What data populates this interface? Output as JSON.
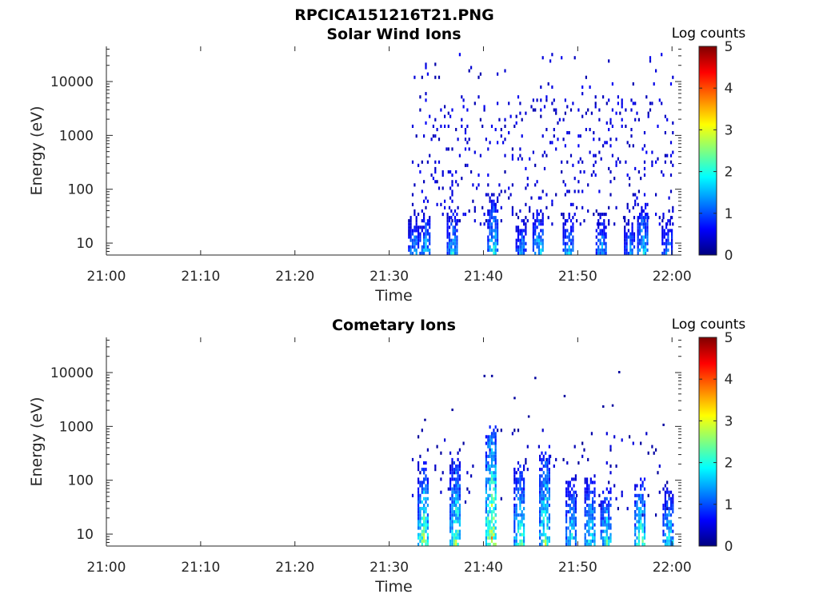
{
  "figure": {
    "title": "RPCICA151216T21.PNG"
  },
  "chart_data": [
    {
      "type": "heatmap",
      "title": "Solar Wind Ions",
      "xlabel": "Time",
      "ylabel": "Energy (eV)",
      "x_ticks": [
        "21:00",
        "21:10",
        "21:20",
        "21:30",
        "21:40",
        "21:50",
        "22:00"
      ],
      "x_range_minutes": [
        0,
        61
      ],
      "y_scale": "log",
      "y_ticks": [
        "10",
        "100",
        "1000",
        "10000"
      ],
      "y_tick_values": [
        10,
        100,
        1000,
        10000
      ],
      "y_range": [
        6,
        45000
      ],
      "colorbar": {
        "title": "Log counts",
        "ticks": [
          "0",
          "1",
          "2",
          "3",
          "4",
          "5"
        ],
        "range": [
          0,
          5
        ],
        "colormap": "jet"
      },
      "data_start_minute": 32.2,
      "bursts": [
        {
          "t": 32.6,
          "e_high": 25,
          "level": 1.8
        },
        {
          "t": 33.8,
          "e_high": 30,
          "level": 1.9
        },
        {
          "t": 36.7,
          "e_high": 35,
          "level": 2.0
        },
        {
          "t": 41.0,
          "e_high": 60,
          "level": 2.2
        },
        {
          "t": 44.0,
          "e_high": 25,
          "level": 1.6
        },
        {
          "t": 45.8,
          "e_high": 40,
          "level": 2.0
        },
        {
          "t": 49.0,
          "e_high": 30,
          "level": 1.8
        },
        {
          "t": 52.5,
          "e_high": 30,
          "level": 1.7
        },
        {
          "t": 55.5,
          "e_high": 25,
          "level": 1.6
        },
        {
          "t": 56.9,
          "e_high": 45,
          "level": 2.1
        },
        {
          "t": 59.5,
          "e_high": 25,
          "level": 1.6
        }
      ],
      "scatter_energy_range": [
        20,
        30000
      ],
      "scatter_level": 0.2
    },
    {
      "type": "heatmap",
      "title": "Cometary Ions",
      "xlabel": "Time",
      "ylabel": "Energy (eV)",
      "x_ticks": [
        "21:00",
        "21:10",
        "21:20",
        "21:30",
        "21:40",
        "21:50",
        "22:00"
      ],
      "x_range_minutes": [
        0,
        61
      ],
      "y_scale": "log",
      "y_ticks": [
        "10",
        "100",
        "1000",
        "10000"
      ],
      "y_tick_values": [
        10,
        100,
        1000,
        10000
      ],
      "y_range": [
        6,
        45000
      ],
      "colorbar": {
        "title": "Log counts",
        "ticks": [
          "0",
          "1",
          "2",
          "3",
          "4",
          "5"
        ],
        "range": [
          0,
          5
        ],
        "colormap": "jet"
      },
      "data_start_minute": 32.4,
      "bursts": [
        {
          "t": 33.6,
          "e_high": 150,
          "level": 3.0
        },
        {
          "t": 37.0,
          "e_high": 200,
          "level": 2.8
        },
        {
          "t": 40.8,
          "e_high": 800,
          "level": 3.6
        },
        {
          "t": 43.8,
          "e_high": 150,
          "level": 2.6
        },
        {
          "t": 46.5,
          "e_high": 300,
          "level": 2.9
        },
        {
          "t": 49.3,
          "e_high": 100,
          "level": 2.2
        },
        {
          "t": 51.3,
          "e_high": 100,
          "level": 2.3
        },
        {
          "t": 53.0,
          "e_high": 60,
          "level": 2.4
        },
        {
          "t": 56.6,
          "e_high": 80,
          "level": 2.8
        },
        {
          "t": 59.6,
          "e_high": 60,
          "level": 2.2
        }
      ],
      "scatter_points": [
        {
          "t": 40.0,
          "e": 8500
        },
        {
          "t": 40.8,
          "e": 8500
        },
        {
          "t": 43.2,
          "e": 3300
        },
        {
          "t": 44.7,
          "e": 1500
        },
        {
          "t": 45.4,
          "e": 7800
        },
        {
          "t": 48.5,
          "e": 3600
        },
        {
          "t": 52.6,
          "e": 2300
        },
        {
          "t": 53.6,
          "e": 2400
        },
        {
          "t": 54.3,
          "e": 10000
        },
        {
          "t": 59.0,
          "e": 1050
        },
        {
          "t": 33.7,
          "e": 1300
        },
        {
          "t": 36.6,
          "e": 2000
        }
      ],
      "scatter_energy_range": [
        20,
        800
      ],
      "scatter_level": 0.1
    }
  ]
}
